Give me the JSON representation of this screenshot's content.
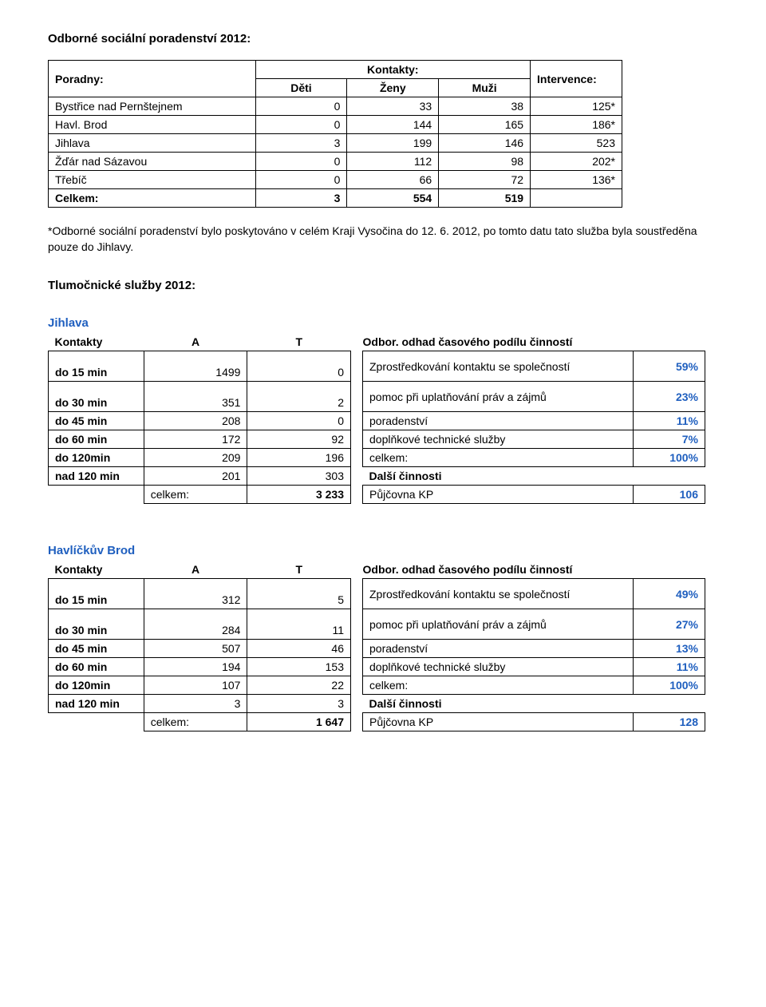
{
  "heading1": "Odborné sociální poradenství 2012:",
  "poradny": {
    "corner": "Poradny:",
    "kontakty_hdr": "Kontakty:",
    "deti_hdr": "Děti",
    "zeny_hdr": "Ženy",
    "muzi_hdr": "Muži",
    "intervence_hdr": "Intervence:",
    "rows": [
      {
        "name": "Bystřice nad Pernštejnem",
        "deti": "0",
        "zeny": "33",
        "muzi": "38",
        "int": "125*"
      },
      {
        "name": "Havl. Brod",
        "deti": "0",
        "zeny": "144",
        "muzi": "165",
        "int": "186*"
      },
      {
        "name": "Jihlava",
        "deti": "3",
        "zeny": "199",
        "muzi": "146",
        "int": "523"
      },
      {
        "name": "Žďár nad Sázavou",
        "deti": "0",
        "zeny": "112",
        "muzi": "98",
        "int": "202*"
      },
      {
        "name": "Třebíč",
        "deti": "0",
        "zeny": "66",
        "muzi": "72",
        "int": "136*"
      }
    ],
    "total": {
      "name": "Celkem:",
      "deti": "3",
      "zeny": "554",
      "muzi": "519"
    }
  },
  "note": "*Odborné sociální poradenství bylo poskytováno v celém Kraji Vysočina do 12. 6. 2012, po tomto datu tato služba byla soustředěna pouze do Jihlavy.",
  "heading2": "Tlumočnické služby 2012:",
  "kontakty_label": "Kontakty",
  "a_label": "A",
  "t_label": "T",
  "odbor_label": "Odbor. odhad časového podílu činností",
  "dalsi_label": "Další činnosti",
  "celkem_label": "celkem:",
  "kp_label": "Půjčovna KP",
  "row_labels": {
    "d15": "do 15 min",
    "d30": "do 30 min",
    "d45": "do 45 min",
    "d60": "do 60 min",
    "d120": "do 120min",
    "n120": "nad 120 min"
  },
  "odbor_rows": {
    "zpros": "Zprostředkování kontaktu se společností",
    "pomoc": "pomoc při uplatňování práv a zájmů",
    "porad": "poradenství",
    "dopl": "doplňkové technické služby",
    "celk": "celkem:"
  },
  "jihlava": {
    "city": "Jihlava",
    "kontakty": {
      "d15": {
        "a": "1499",
        "t": "0"
      },
      "d30": {
        "a": "351",
        "t": "2"
      },
      "d45": {
        "a": "208",
        "t": "0"
      },
      "d60": {
        "a": "172",
        "t": "92"
      },
      "d120": {
        "a": "209",
        "t": "196"
      },
      "n120": {
        "a": "201",
        "t": "303"
      },
      "celkem": "3 233"
    },
    "odbor": {
      "zpros": "59%",
      "pomoc": "23%",
      "porad": "11%",
      "dopl": "7%",
      "celk": "100%",
      "kp": "106"
    }
  },
  "brod": {
    "city": "Havlíčkův Brod",
    "kontakty": {
      "d15": {
        "a": "312",
        "t": "5"
      },
      "d30": {
        "a": "284",
        "t": "11"
      },
      "d45": {
        "a": "507",
        "t": "46"
      },
      "d60": {
        "a": "194",
        "t": "153"
      },
      "d120": {
        "a": "107",
        "t": "22"
      },
      "n120": {
        "a": "3",
        "t": "3"
      },
      "celkem": "1 647"
    },
    "odbor": {
      "zpros": "49%",
      "pomoc": "27%",
      "porad": "13%",
      "dopl": "11%",
      "celk": "100%",
      "kp": "128"
    }
  }
}
